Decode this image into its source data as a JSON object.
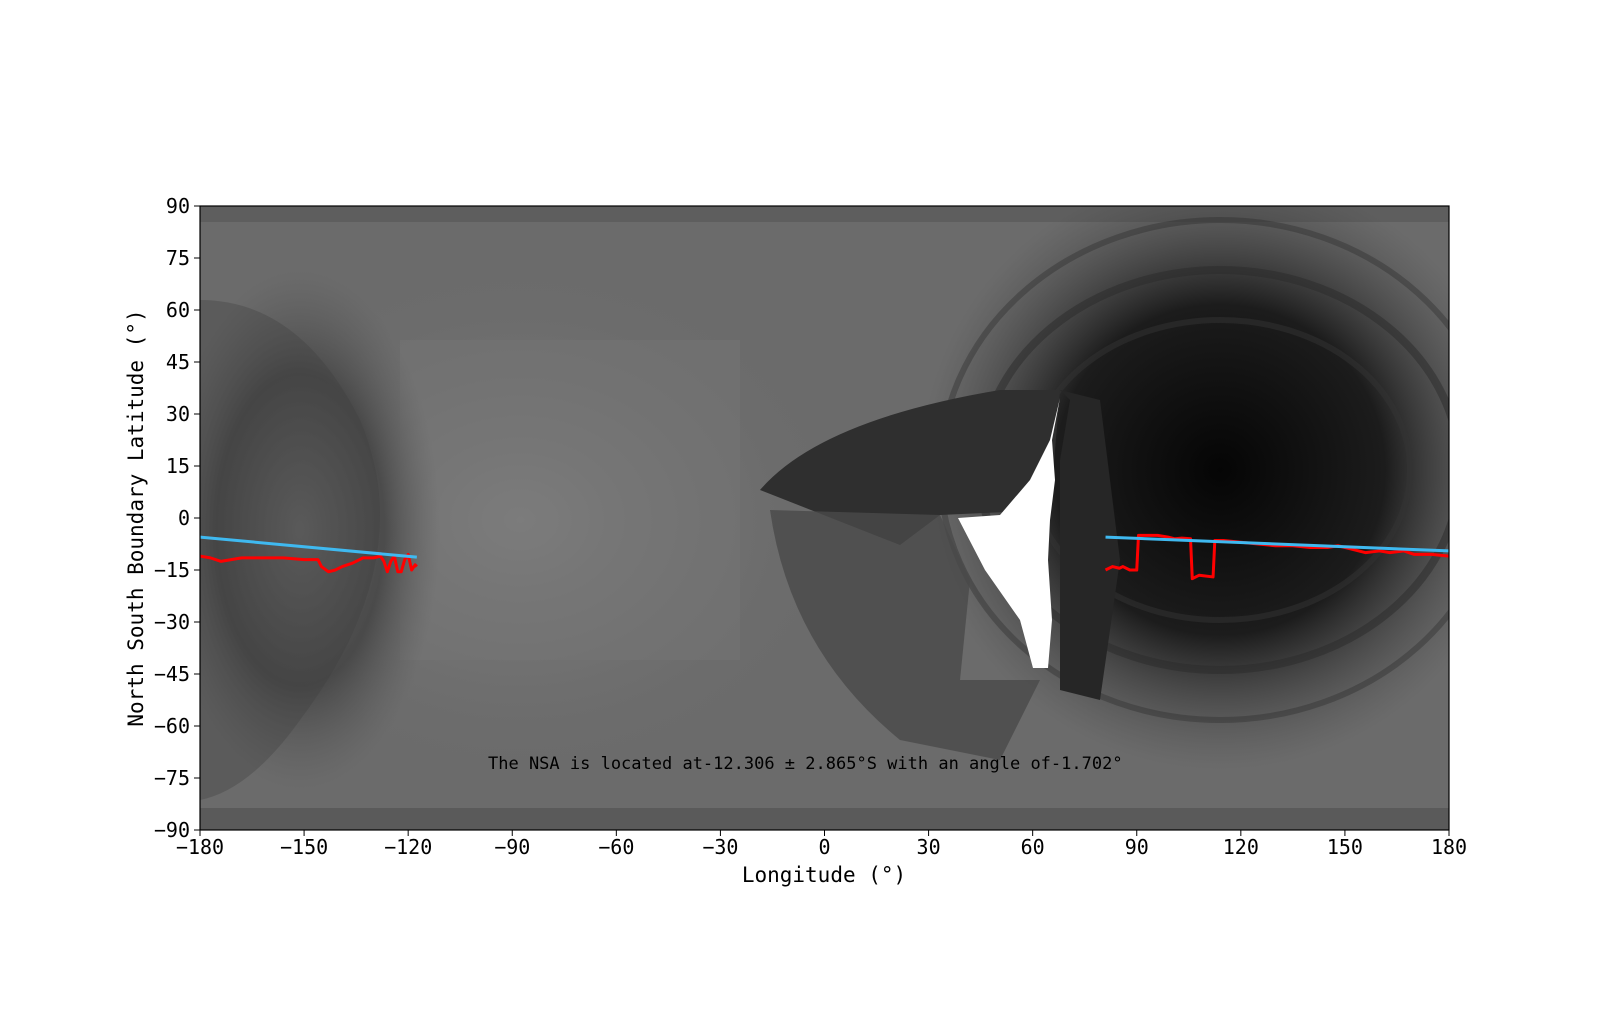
{
  "chart_data": {
    "type": "line",
    "xlabel": "Longitude (°)",
    "ylabel": "North South Boundary Latitude (°)",
    "xlim": [
      -180,
      180
    ],
    "ylim": [
      -90,
      90
    ],
    "xticks": [
      -180,
      -150,
      -120,
      -90,
      -60,
      -30,
      0,
      30,
      60,
      90,
      120,
      150,
      180
    ],
    "yticks": [
      90,
      75,
      60,
      45,
      30,
      15,
      0,
      -15,
      -30,
      -45,
      -60,
      -75,
      -90
    ],
    "xtick_labels": [
      "−180",
      "−150",
      "−120",
      "−90",
      "−60",
      "−30",
      "0",
      "30",
      "60",
      "90",
      "120",
      "150",
      "180"
    ],
    "ytick_labels": [
      "90",
      "75",
      "60",
      "45",
      "30",
      "15",
      "0",
      "−15",
      "−30",
      "−45",
      "−60",
      "−75",
      "−90"
    ],
    "annotation": "The NSA is located at-12.306 ± 2.865°S  with an angle of-1.702°",
    "background": "grayscale-map",
    "grid": false,
    "colors": {
      "boundary": "#ff0000",
      "fit": "#3fb9f0"
    },
    "series": [
      {
        "role": "boundary",
        "segments": [
          [
            [
              -180,
              -11
            ],
            [
              -177,
              -11.5
            ],
            [
              -174,
              -12.5
            ],
            [
              -171,
              -12
            ],
            [
              -168,
              -11.5
            ],
            [
              -162,
              -11.5
            ],
            [
              -156,
              -11.5
            ],
            [
              -150,
              -12
            ],
            [
              -146,
              -12
            ],
            [
              -145,
              -14
            ],
            [
              -143,
              -15.5
            ],
            [
              -141,
              -15
            ],
            [
              -139,
              -14
            ],
            [
              -136,
              -13
            ],
            [
              -133,
              -11.5
            ],
            [
              -130,
              -11.5
            ],
            [
              -128,
              -11
            ],
            [
              -127,
              -12.5
            ],
            [
              -126,
              -15.5
            ],
            [
              -125,
              -12.5
            ],
            [
              -124,
              -11
            ],
            [
              -123,
              -15.5
            ],
            [
              -122,
              -15.5
            ],
            [
              -121,
              -12
            ],
            [
              -120,
              -10.5
            ],
            [
              -119,
              -15
            ],
            [
              -118,
              -13.5
            ],
            [
              -117.5,
              -14
            ]
          ],
          [
            [
              81,
              -15
            ],
            [
              83,
              -14
            ],
            [
              85,
              -14.5
            ],
            [
              86,
              -14
            ],
            [
              88,
              -15
            ],
            [
              90,
              -15
            ],
            [
              90.5,
              -5
            ],
            [
              93,
              -5
            ],
            [
              96,
              -5
            ],
            [
              99,
              -5.5
            ],
            [
              101,
              -6
            ],
            [
              103,
              -5.8
            ],
            [
              105.5,
              -6
            ],
            [
              106,
              -17.5
            ],
            [
              108,
              -16.5
            ],
            [
              112,
              -17
            ],
            [
              112.5,
              -6.5
            ],
            [
              115,
              -6.5
            ],
            [
              120,
              -7
            ],
            [
              125,
              -7.5
            ],
            [
              130,
              -8
            ],
            [
              135,
              -8
            ],
            [
              140,
              -8.5
            ],
            [
              145,
              -8.5
            ],
            [
              148,
              -8
            ],
            [
              152,
              -9
            ],
            [
              156,
              -10
            ],
            [
              160,
              -9.5
            ],
            [
              163,
              -10
            ],
            [
              167,
              -9.5
            ],
            [
              170,
              -10.5
            ],
            [
              175,
              -10.5
            ],
            [
              180,
              -11
            ]
          ]
        ]
      },
      {
        "role": "fit",
        "segments": [
          [
            [
              -180,
              -5.5
            ],
            [
              -117.5,
              -11.3
            ]
          ],
          [
            [
              81,
              -5.5
            ],
            [
              180,
              -9.5
            ]
          ]
        ]
      }
    ]
  }
}
